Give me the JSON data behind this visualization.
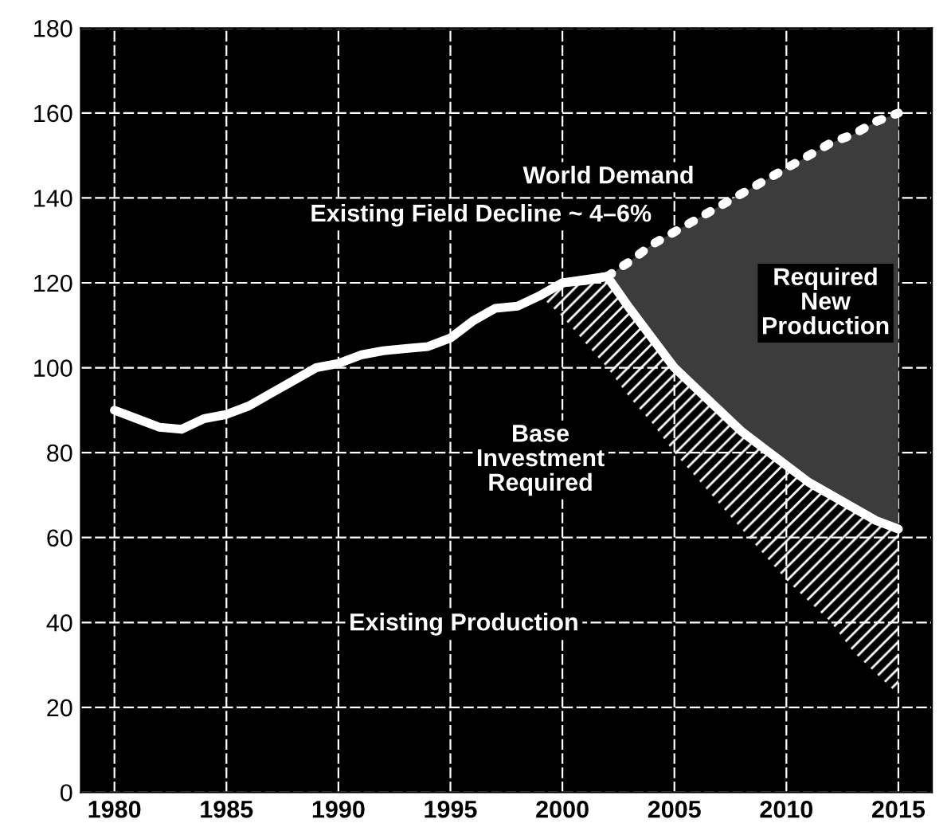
{
  "chart_data": {
    "type": "line",
    "xlim": [
      1978.5,
      2016.5
    ],
    "ylim": [
      0,
      180
    ],
    "xticks": [
      1980,
      1985,
      1990,
      1995,
      2000,
      2005,
      2010,
      2015
    ],
    "yticks": [
      0,
      20,
      40,
      60,
      80,
      100,
      120,
      140,
      160,
      180
    ],
    "grid": true,
    "series": [
      {
        "color": "#ffffff",
        "line_style": "solid",
        "x": [
          1980,
          1981,
          1982,
          1983,
          1984,
          1985,
          1986,
          1987,
          1988,
          1989,
          1990,
          1991,
          1992,
          1993,
          1994,
          1995,
          1996,
          1997,
          1998,
          1999,
          2000,
          2001,
          2002
        ],
        "values": [
          90,
          88,
          86,
          85.5,
          88,
          89,
          91,
          94,
          97,
          100,
          101,
          103,
          104,
          104.5,
          105,
          107,
          111,
          114,
          114.5,
          117,
          120,
          120.5,
          121.5
        ]
      },
      {
        "color": "#ffffff",
        "line_style": "solid",
        "x": [
          1999,
          2000,
          2002,
          2003,
          2004,
          2005,
          2006,
          2007,
          2008,
          2009,
          2010,
          2011,
          2012,
          2013,
          2014,
          2015
        ],
        "values": [
          117,
          120,
          121.5,
          114,
          107,
          100,
          95,
          90,
          85,
          81,
          77,
          73,
          70,
          67,
          64,
          62
        ],
        "lower": [
          117,
          112,
          100,
          93,
          87,
          80,
          74,
          68,
          62,
          56,
          50,
          45,
          40,
          33,
          28,
          23
        ],
        "upper": [
          117,
          120,
          121.5,
          114,
          107,
          100,
          95,
          90,
          85,
          81,
          77,
          73,
          70,
          67,
          64,
          62
        ]
      },
      {
        "color": "#ffffff",
        "line_style": "dotted",
        "x": [
          2002,
          2003,
          2004,
          2005,
          2006,
          2007,
          2008,
          2009,
          2010,
          2011,
          2012,
          2013,
          2014,
          2015
        ],
        "values": [
          121.5,
          125,
          129,
          132,
          135,
          138,
          141,
          144,
          147,
          150,
          153,
          155,
          158,
          160
        ],
        "lower": [
          121.5,
          114,
          107,
          100,
          95,
          90,
          85,
          81,
          77,
          73,
          70,
          67,
          64,
          62
        ],
        "upper": [
          121.5,
          125,
          129,
          132,
          135,
          138,
          141,
          144,
          147,
          150,
          153,
          155,
          158,
          160
        ]
      }
    ],
    "annotations": [
      "World Demand",
      "Existing Field Decline ~ 4–6%",
      "Required\nNew\nProduction",
      "Base\nInvestment\nRequired",
      "Existing Production"
    ]
  }
}
